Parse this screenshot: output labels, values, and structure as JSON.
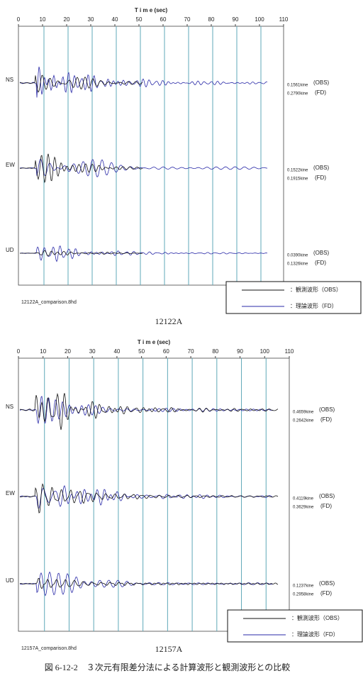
{
  "panels": [
    {
      "axis_title": "T i m e (sec)",
      "xticks": [
        0,
        10,
        20,
        30,
        40,
        50,
        60,
        70,
        80,
        90,
        100,
        110
      ],
      "rows": [
        {
          "label": "NS",
          "obs_value": "0.1561kine",
          "obs_tag": "(OBS)",
          "fd_value": "0.2790kine",
          "fd_tag": "(FD)"
        },
        {
          "label": "EW",
          "obs_value": "0.1522kine",
          "obs_tag": "(OBS)",
          "fd_value": "0.1915kine",
          "fd_tag": "(FD)"
        },
        {
          "label": "UD",
          "obs_value": "0.0390kine",
          "obs_tag": "(OBS)",
          "fd_value": "0.1326kine",
          "fd_tag": "(FD)"
        }
      ],
      "legend": [
        "：観測波形（OBS）",
        "：理論波形（FD）"
      ],
      "file": "12122A_comparison.8hd",
      "caption": "12122A"
    },
    {
      "axis_title": "T i m e (sec)",
      "xticks": [
        0,
        10,
        20,
        30,
        40,
        50,
        60,
        70,
        80,
        90,
        100,
        110
      ],
      "rows": [
        {
          "label": "NS",
          "obs_value": "0.4659kine",
          "obs_tag": "(OBS)",
          "fd_value": "0.2642kine",
          "fd_tag": "(FD)"
        },
        {
          "label": "EW",
          "obs_value": "0.4119kine",
          "obs_tag": "(OBS)",
          "fd_value": "0.3629kine",
          "fd_tag": "(FD)"
        },
        {
          "label": "UD",
          "obs_value": "0.1237kine",
          "obs_tag": "(OBS)",
          "fd_value": "0.2958kine",
          "fd_tag": "(FD)"
        }
      ],
      "legend": [
        "：観測波形（OBS）",
        "：理論波形（FD）"
      ],
      "file": "12157A_comparison.8hd",
      "caption": "12157A"
    }
  ],
  "figure_caption": "図 6-12-2　３次元有限差分法による計算波形と観測波形との比較"
}
